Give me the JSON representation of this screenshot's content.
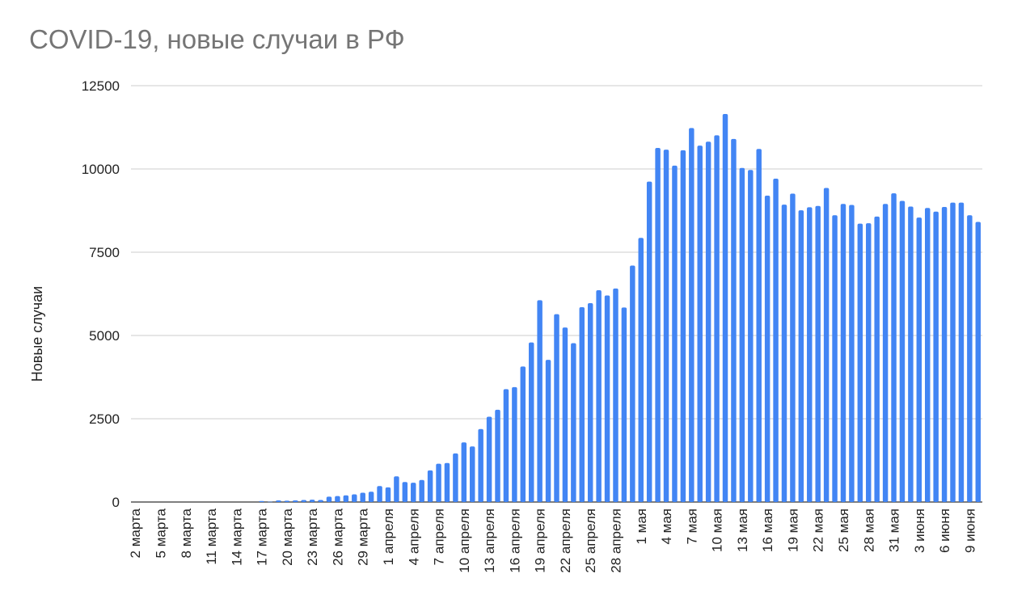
{
  "chart_data": {
    "type": "bar",
    "title": "COVID-19, новые случаи в РФ",
    "xlabel": "",
    "ylabel": "Новые случаи",
    "ylim": [
      0,
      12500
    ],
    "yticks": [
      "0",
      "2500",
      "5000",
      "7500",
      "10000",
      "12500"
    ],
    "grid": true,
    "bar_color": "#4285f4",
    "categories": [
      "2 марта",
      "3 марта",
      "4 марта",
      "5 марта",
      "6 марта",
      "7 марта",
      "8 марта",
      "9 марта",
      "10 марта",
      "11 марта",
      "12 марта",
      "13 марта",
      "14 марта",
      "15 марта",
      "16 марта",
      "17 марта",
      "18 марта",
      "19 марта",
      "20 марта",
      "21 марта",
      "22 марта",
      "23 марта",
      "24 марта",
      "25 марта",
      "26 марта",
      "27 марта",
      "28 марта",
      "29 марта",
      "30 марта",
      "31 марта",
      "1 апреля",
      "2 апреля",
      "3 апреля",
      "4 апреля",
      "5 апреля",
      "6 апреля",
      "7 апреля",
      "8 апреля",
      "9 апреля",
      "10 апреля",
      "11 апреля",
      "12 апреля",
      "13 апреля",
      "14 апреля",
      "15 апреля",
      "16 апреля",
      "17 апреля",
      "18 апреля",
      "19 апреля",
      "20 апреля",
      "21 апреля",
      "22 апреля",
      "23 апреля",
      "24 апреля",
      "25 апреля",
      "26 апреля",
      "27 апреля",
      "28 апреля",
      "29 апреля",
      "30 апреля",
      "1 мая",
      "2 мая",
      "3 мая",
      "4 мая",
      "5 мая",
      "6 мая",
      "7 мая",
      "8 мая",
      "9 мая",
      "10 мая",
      "11 мая",
      "12 мая",
      "13 мая",
      "14 мая",
      "15 мая",
      "16 мая",
      "17 мая",
      "18 мая",
      "19 мая",
      "20 мая",
      "21 мая",
      "22 мая",
      "23 мая",
      "24 мая",
      "25 мая",
      "26 мая",
      "27 мая",
      "28 мая",
      "29 мая",
      "30 мая",
      "31 мая",
      "1 июня",
      "2 июня",
      "3 июня",
      "4 июня",
      "5 июня",
      "6 июня",
      "7 июня",
      "8 июня",
      "9 июня",
      "10 июня"
    ],
    "shown_tick_labels": [
      "2 марта",
      "5 марта",
      "8 марта",
      "11 марта",
      "14 марта",
      "17 марта",
      "20 марта",
      "23 марта",
      "26 марта",
      "29 марта",
      "1 апреля",
      "4 апреля",
      "7 апреля",
      "10 апреля",
      "13 апреля",
      "16 апреля",
      "19 апреля",
      "22 апреля",
      "25 апреля",
      "28 апреля",
      "1 мая",
      "4 мая",
      "7 мая",
      "10 мая",
      "13 мая",
      "16 мая",
      "19 мая",
      "22 мая",
      "25 мая",
      "28 мая",
      "31 мая",
      "3 июня",
      "6 июня",
      "9 июня"
    ],
    "values": [
      0,
      0,
      0,
      0,
      0,
      0,
      0,
      0,
      0,
      0,
      0,
      0,
      0,
      0,
      0,
      30,
      10,
      50,
      40,
      50,
      60,
      70,
      60,
      160,
      180,
      200,
      230,
      280,
      310,
      480,
      440,
      770,
      600,
      580,
      660,
      950,
      1150,
      1170,
      1460,
      1790,
      1670,
      2190,
      2560,
      2770,
      3390,
      3450,
      4070,
      4790,
      6060,
      4270,
      5640,
      5240,
      4770,
      5850,
      5970,
      6360,
      6200,
      6410,
      5840,
      7100,
      7930,
      9620,
      10630,
      10580,
      10100,
      10560,
      11230,
      10700,
      10820,
      11010,
      11650,
      10900,
      10030,
      9970,
      10600,
      9200,
      9710,
      8930,
      9260,
      8760,
      8850,
      8890,
      9430,
      8610,
      8950,
      8920,
      8360,
      8370,
      8570,
      8950,
      9270,
      9040,
      8870,
      8540,
      8830,
      8720,
      8860,
      8990,
      8990,
      8610,
      8410
    ]
  }
}
